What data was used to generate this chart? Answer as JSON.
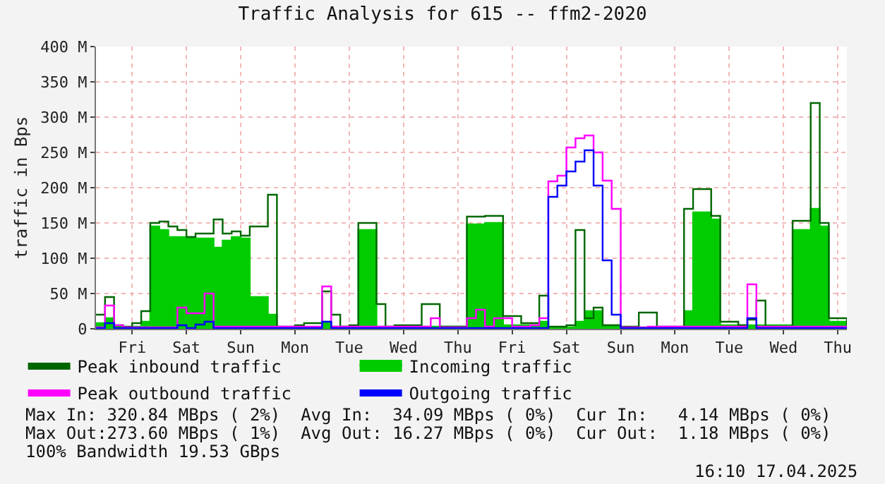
{
  "chart_data": {
    "type": "step",
    "title": "Traffic Analysis for 615 -- ffm2-2020",
    "ylabel": "traffic in Bps",
    "categories": [
      null,
      null,
      null,
      null,
      "Fri",
      null,
      null,
      null,
      null,
      null,
      "Sat",
      null,
      null,
      null,
      null,
      null,
      "Sun",
      null,
      null,
      null,
      null,
      null,
      "Mon",
      null,
      null,
      null,
      null,
      null,
      "Tue",
      null,
      null,
      null,
      null,
      null,
      "Wed",
      null,
      null,
      null,
      null,
      null,
      "Thu",
      null,
      null,
      null,
      null,
      null,
      "Fri",
      null,
      null,
      null,
      null,
      null,
      "Sat",
      null,
      null,
      null,
      null,
      null,
      "Sun",
      null,
      null,
      null,
      null,
      null,
      "Mon",
      null,
      null,
      null,
      null,
      null,
      "Tue",
      null,
      null,
      null,
      null,
      null,
      "Wed",
      null,
      null,
      null,
      null,
      null,
      "Thu",
      null
    ],
    "ylim": [
      0,
      400
    ],
    "yticks": [
      0,
      {
        "value": 50,
        "label": "50 M"
      },
      {
        "value": 100,
        "label": "100 M"
      },
      {
        "value": 150,
        "label": "150 M"
      },
      {
        "value": 200,
        "label": "200 M"
      },
      {
        "value": 250,
        "label": "250 M"
      },
      {
        "value": 300,
        "label": "300 M"
      },
      {
        "value": 350,
        "label": "350 M"
      },
      {
        "value": 400,
        "label": "400 M"
      }
    ],
    "grid": true,
    "legend": "bottom",
    "series": [
      {
        "name": "Peak inbound traffic",
        "type": "step",
        "color": "#006600",
        "values": [
          20,
          45,
          5,
          3,
          8,
          25,
          150,
          152,
          145,
          140,
          130,
          135,
          135,
          155,
          135,
          138,
          132,
          145,
          145,
          190,
          3,
          3,
          5,
          8,
          8,
          53,
          20,
          3,
          5,
          150,
          150,
          35,
          3,
          5,
          5,
          5,
          35,
          35,
          3,
          3,
          3,
          159,
          159,
          160,
          160,
          18,
          18,
          8,
          8,
          47,
          3,
          3,
          5,
          140,
          15,
          30,
          5,
          5,
          3,
          3,
          23,
          23,
          3,
          3,
          3,
          170,
          198,
          198,
          160,
          10,
          10,
          5,
          13,
          40,
          3,
          3,
          3,
          153,
          153,
          320,
          150,
          15,
          15,
          3
        ]
      },
      {
        "name": "Incoming traffic",
        "type": "area",
        "color": "#00cc00",
        "values": [
          8,
          15,
          3,
          2,
          3,
          10,
          145,
          140,
          130,
          130,
          130,
          128,
          128,
          115,
          125,
          130,
          128,
          45,
          45,
          20,
          0,
          0,
          0,
          0,
          0,
          10,
          3,
          3,
          3,
          140,
          140,
          3,
          3,
          3,
          3,
          3,
          3,
          3,
          3,
          3,
          3,
          148,
          148,
          150,
          150,
          5,
          5,
          5,
          5,
          10,
          2,
          2,
          2,
          10,
          25,
          25,
          5,
          5,
          2,
          2,
          2,
          2,
          2,
          2,
          2,
          25,
          165,
          165,
          155,
          5,
          5,
          5,
          5,
          5,
          5,
          5,
          5,
          140,
          140,
          170,
          145,
          10,
          10,
          2
        ]
      },
      {
        "name": "Peak outbound traffic",
        "type": "step",
        "color": "#ff00ff",
        "values": [
          2,
          33,
          5,
          2,
          2,
          2,
          2,
          2,
          2,
          30,
          22,
          22,
          50,
          3,
          3,
          3,
          3,
          3,
          3,
          3,
          3,
          3,
          3,
          3,
          3,
          60,
          3,
          3,
          3,
          3,
          3,
          3,
          3,
          3,
          3,
          3,
          3,
          15,
          2,
          2,
          2,
          15,
          27,
          3,
          15,
          15,
          3,
          3,
          5,
          15,
          209,
          217,
          257,
          270,
          274,
          250,
          210,
          170,
          2,
          2,
          2,
          3,
          3,
          3,
          3,
          3,
          3,
          3,
          3,
          3,
          3,
          3,
          63,
          3,
          3,
          3,
          3,
          3,
          3,
          3,
          3,
          3,
          3,
          3
        ]
      },
      {
        "name": "Outgoing traffic",
        "type": "step",
        "color": "#0000ff",
        "values": [
          1,
          8,
          1,
          1,
          1,
          1,
          1,
          1,
          1,
          5,
          1,
          6,
          10,
          1,
          1,
          1,
          1,
          1,
          1,
          1,
          1,
          1,
          1,
          1,
          1,
          10,
          1,
          1,
          1,
          1,
          1,
          1,
          1,
          1,
          1,
          1,
          1,
          1,
          1,
          1,
          1,
          1,
          1,
          1,
          1,
          1,
          1,
          1,
          1,
          1,
          187,
          203,
          223,
          237,
          253,
          203,
          97,
          20,
          1,
          1,
          1,
          1,
          1,
          1,
          1,
          1,
          1,
          1,
          1,
          1,
          1,
          1,
          15,
          1,
          1,
          1,
          1,
          1,
          1,
          1,
          1,
          1,
          1,
          1
        ]
      }
    ],
    "annotations": [
      "Max In: 320.84 MBps ( 2%)  Avg In:  34.09 MBps ( 0%)  Cur In:   4.14 MBps ( 0%)",
      "Max Out:273.60 MBps ( 1%)  Avg Out: 16.27 MBps ( 0%)  Cur Out:  1.18 MBps ( 0%)",
      "100% Bandwidth 19.53 GBps",
      "16:10 17.04.2025"
    ]
  }
}
